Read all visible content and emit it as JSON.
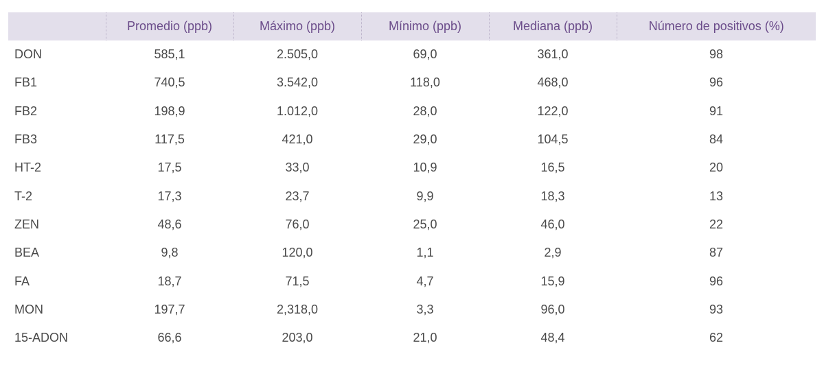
{
  "table": {
    "headers": [
      "",
      "Promedio (ppb)",
      "Máximo (ppb)",
      "Mínimo (ppb)",
      "Mediana (ppb)",
      "Número de positivos (%)"
    ],
    "rows": [
      [
        "DON",
        "585,1",
        "2.505,0",
        "69,0",
        "361,0",
        "98"
      ],
      [
        "FB1",
        "740,5",
        "3.542,0",
        "118,0",
        "468,0",
        "96"
      ],
      [
        "FB2",
        "198,9",
        "1.012,0",
        "28,0",
        "122,0",
        "91"
      ],
      [
        "FB3",
        "117,5",
        "421,0",
        "29,0",
        "104,5",
        "84"
      ],
      [
        "HT-2",
        "17,5",
        "33,0",
        "10,9",
        "16,5",
        "20"
      ],
      [
        "T-2",
        "17,3",
        "23,7",
        "9,9",
        "18,3",
        "13"
      ],
      [
        "ZEN",
        "48,6",
        "76,0",
        "25,0",
        "46,0",
        "22"
      ],
      [
        "BEA",
        "9,8",
        "120,0",
        "1,1",
        "2,9",
        "87"
      ],
      [
        "FA",
        "18,7",
        "71,5",
        "4,7",
        "15,9",
        "96"
      ],
      [
        "MON",
        "197,7",
        "2,318,0",
        "3,3",
        "96,0",
        "93"
      ],
      [
        "15-ADON",
        "66,6",
        "203,0",
        "21,0",
        "48,4",
        "62"
      ]
    ]
  },
  "colors": {
    "header_bg": "#e3dfeb",
    "header_text": "#6b4c8a",
    "body_text": "#4a4a4a"
  }
}
